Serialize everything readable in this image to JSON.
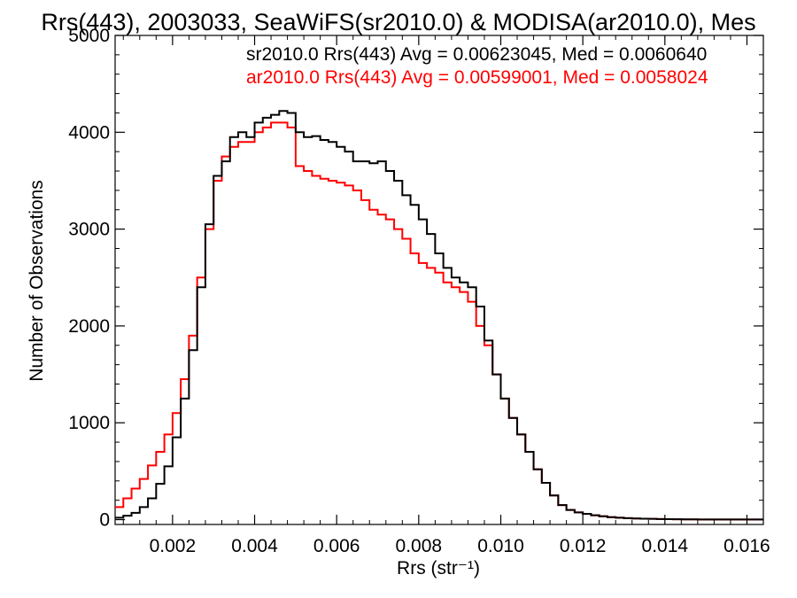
{
  "chart_data": {
    "type": "line",
    "title": "Rrs(443), 2003033, SeaWiFS(sr2010.0) & MODISA(ar2010.0), Mes",
    "xlabel": "Rrs (str⁻¹)",
    "ylabel": "Number of Observations",
    "xlim": [
      0.0006,
      0.0164
    ],
    "ylim": [
      -50,
      5000
    ],
    "x_ticks": [
      "0.002",
      "0.004",
      "0.006",
      "0.008",
      "0.010",
      "0.012",
      "0.014",
      "0.016"
    ],
    "x_tick_values": [
      0.002,
      0.004,
      0.006,
      0.008,
      0.01,
      0.012,
      0.014,
      0.016
    ],
    "y_ticks": [
      "0",
      "1000",
      "2000",
      "3000",
      "4000",
      "5000"
    ],
    "y_tick_values": [
      0,
      1000,
      2000,
      3000,
      4000,
      5000
    ],
    "grid": false,
    "legend_position": "top-right",
    "step": true,
    "x": [
      0.0006,
      0.0008,
      0.001,
      0.0012,
      0.0014,
      0.0016,
      0.0018,
      0.002,
      0.0022,
      0.0024,
      0.0026,
      0.0028,
      0.003,
      0.0032,
      0.0034,
      0.0036,
      0.0038,
      0.004,
      0.0042,
      0.0044,
      0.0046,
      0.0048,
      0.005,
      0.0052,
      0.0054,
      0.0056,
      0.0058,
      0.006,
      0.0062,
      0.0064,
      0.0066,
      0.0068,
      0.007,
      0.0072,
      0.0074,
      0.0076,
      0.0078,
      0.008,
      0.0082,
      0.0084,
      0.0086,
      0.0088,
      0.009,
      0.0092,
      0.0094,
      0.0096,
      0.0098,
      0.01,
      0.0102,
      0.0104,
      0.0106,
      0.0108,
      0.011,
      0.0112,
      0.0114,
      0.0116,
      0.0118,
      0.012,
      0.0122,
      0.0124,
      0.0126,
      0.0128,
      0.013,
      0.0132,
      0.0134,
      0.0136,
      0.0138,
      0.014,
      0.0142,
      0.0144,
      0.0146,
      0.0148,
      0.015,
      0.0152,
      0.0154,
      0.0156,
      0.0158,
      0.016,
      0.0162,
      0.0164
    ],
    "series": [
      {
        "name": "sr2010.0",
        "legend": "sr2010.0 Rrs(443) Avg = 0.00623045, Med = 0.0060640",
        "color": "#000000",
        "values": [
          20,
          40,
          70,
          130,
          220,
          370,
          550,
          850,
          1250,
          1750,
          2400,
          3050,
          3550,
          3700,
          3950,
          4000,
          3950,
          4100,
          4150,
          4180,
          4220,
          4200,
          4000,
          3950,
          3960,
          3920,
          3900,
          3850,
          3800,
          3700,
          3700,
          3680,
          3700,
          3600,
          3500,
          3350,
          3250,
          3100,
          2950,
          2750,
          2600,
          2500,
          2450,
          2400,
          2200,
          1850,
          1500,
          1250,
          1050,
          880,
          700,
          520,
          380,
          250,
          150,
          100,
          75,
          60,
          45,
          35,
          25,
          20,
          15,
          12,
          10,
          8,
          6,
          5,
          4,
          3,
          3,
          2,
          2,
          2,
          1,
          1,
          1,
          1,
          1,
          1
        ]
      },
      {
        "name": "ar2010.0",
        "legend": "ar2010.0 Rrs(443) Avg = 0.00599001, Med = 0.0058024",
        "color": "#ff0000",
        "values": [
          130,
          220,
          320,
          420,
          560,
          700,
          880,
          1100,
          1450,
          1900,
          2500,
          3000,
          3500,
          3750,
          3850,
          3900,
          3900,
          4000,
          4050,
          4100,
          4100,
          4050,
          3650,
          3600,
          3550,
          3520,
          3500,
          3480,
          3450,
          3400,
          3300,
          3200,
          3150,
          3100,
          3000,
          2900,
          2750,
          2650,
          2600,
          2550,
          2450,
          2400,
          2350,
          2250,
          2000,
          1800,
          1500,
          1250,
          1050,
          880,
          700,
          520,
          380,
          250,
          150,
          100,
          75,
          60,
          45,
          35,
          25,
          20,
          15,
          12,
          10,
          8,
          6,
          5,
          4,
          3,
          3,
          2,
          2,
          2,
          1,
          1,
          1,
          1,
          1,
          1
        ]
      }
    ]
  }
}
